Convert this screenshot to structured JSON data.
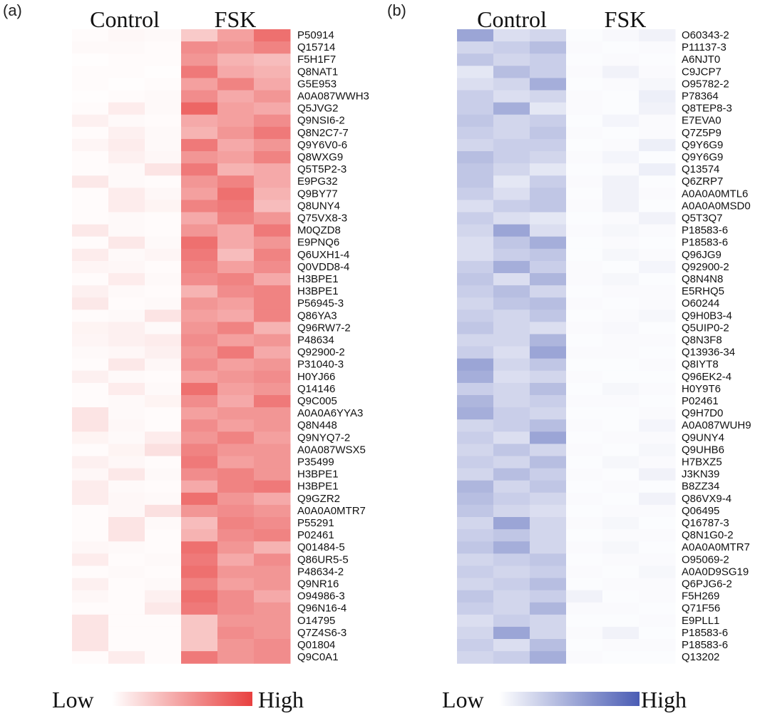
{
  "chart_data": [
    {
      "type": "heatmap",
      "panel": "(a)",
      "groups": [
        "Control",
        "FSK"
      ],
      "columns": 6,
      "color_low": "#ffffff",
      "color_high": "#e8403f",
      "legend": {
        "low": "Low",
        "high": "High"
      },
      "rows": [
        "P50914",
        "Q15714",
        "F5H1F7",
        "Q8NAT1",
        "G5E953",
        "A0A087WWH3",
        "Q5JVG2",
        "Q9NSI6-2",
        "Q8N2C7-7",
        "Q9Y6V0-6",
        "Q8WXG9",
        "Q5T5P2-3",
        "E9PG32",
        "Q9BY77",
        "Q8UNY4",
        "Q75VX8-3",
        "M0QZD8",
        "E9PNQ6",
        "Q6UXH1-4",
        "Q0VDD8-4",
        "H3BPE1",
        "H3BPE1",
        "P56945-3",
        "Q86YA3",
        "Q96RW7-2",
        "P48634",
        "Q92900-2",
        "P31040-3",
        "H0YJ66",
        "Q14146",
        "Q9C005",
        "A0A0A6YYA3",
        "Q8N448",
        "Q9NYQ7-2",
        "A0A087WSX5",
        "P35499",
        "H3BPE1",
        "H3BPE1",
        "Q9GZR2",
        "A0A0A0MTR7",
        "P55291",
        "P02461",
        "Q01484-5",
        "Q86UR5-5",
        "P48634-2",
        "Q9NR16",
        "O94986-3",
        "Q96N16-4",
        "O14795",
        "Q7Z4S6-3",
        "Q01804",
        "Q9C0A1"
      ],
      "values": [
        [
          0.02,
          0.04,
          0.03,
          0.28,
          0.5,
          0.75
        ],
        [
          0.03,
          0.03,
          0.02,
          0.6,
          0.55,
          0.65
        ],
        [
          0.01,
          0.02,
          0.02,
          0.55,
          0.4,
          0.35
        ],
        [
          0.02,
          0.02,
          0.01,
          0.7,
          0.45,
          0.4
        ],
        [
          0.02,
          0.01,
          0.02,
          0.5,
          0.65,
          0.45
        ],
        [
          0.01,
          0.02,
          0.03,
          0.6,
          0.45,
          0.55
        ],
        [
          0.02,
          0.1,
          0.03,
          0.8,
          0.5,
          0.45
        ],
        [
          0.08,
          0.03,
          0.02,
          0.45,
          0.5,
          0.6
        ],
        [
          0.02,
          0.08,
          0.03,
          0.4,
          0.55,
          0.7
        ],
        [
          0.05,
          0.1,
          0.03,
          0.7,
          0.45,
          0.55
        ],
        [
          0.02,
          0.08,
          0.04,
          0.55,
          0.5,
          0.65
        ],
        [
          0.02,
          0.03,
          0.14,
          0.7,
          0.4,
          0.45
        ],
        [
          0.12,
          0.03,
          0.02,
          0.55,
          0.65,
          0.45
        ],
        [
          0.02,
          0.1,
          0.04,
          0.5,
          0.75,
          0.4
        ],
        [
          0.02,
          0.1,
          0.06,
          0.65,
          0.7,
          0.35
        ],
        [
          0.02,
          0.03,
          0.02,
          0.45,
          0.65,
          0.55
        ],
        [
          0.12,
          0.03,
          0.02,
          0.55,
          0.45,
          0.7
        ],
        [
          0.02,
          0.12,
          0.03,
          0.75,
          0.45,
          0.55
        ],
        [
          0.1,
          0.03,
          0.05,
          0.7,
          0.35,
          0.65
        ],
        [
          0.05,
          0.04,
          0.02,
          0.65,
          0.5,
          0.6
        ],
        [
          0.02,
          0.1,
          0.03,
          0.6,
          0.65,
          0.45
        ],
        [
          0.08,
          0.03,
          0.02,
          0.4,
          0.6,
          0.65
        ],
        [
          0.12,
          0.02,
          0.03,
          0.55,
          0.5,
          0.65
        ],
        [
          0.02,
          0.03,
          0.14,
          0.5,
          0.45,
          0.65
        ],
        [
          0.06,
          0.08,
          0.03,
          0.55,
          0.65,
          0.4
        ],
        [
          0.05,
          0.08,
          0.1,
          0.6,
          0.5,
          0.55
        ],
        [
          0.03,
          0.04,
          0.08,
          0.55,
          0.7,
          0.45
        ],
        [
          0.02,
          0.12,
          0.04,
          0.6,
          0.5,
          0.55
        ],
        [
          0.08,
          0.03,
          0.02,
          0.5,
          0.55,
          0.6
        ],
        [
          0.02,
          0.1,
          0.03,
          0.75,
          0.5,
          0.55
        ],
        [
          0.02,
          0.03,
          0.06,
          0.6,
          0.45,
          0.7
        ],
        [
          0.14,
          0.03,
          0.02,
          0.5,
          0.55,
          0.55
        ],
        [
          0.14,
          0.04,
          0.02,
          0.6,
          0.5,
          0.55
        ],
        [
          0.06,
          0.03,
          0.1,
          0.55,
          0.65,
          0.5
        ],
        [
          0.02,
          0.06,
          0.16,
          0.65,
          0.55,
          0.55
        ],
        [
          0.08,
          0.04,
          0.02,
          0.7,
          0.5,
          0.55
        ],
        [
          0.04,
          0.12,
          0.03,
          0.6,
          0.65,
          0.55
        ],
        [
          0.1,
          0.03,
          0.02,
          0.45,
          0.65,
          0.7
        ],
        [
          0.1,
          0.04,
          0.03,
          0.75,
          0.55,
          0.45
        ],
        [
          0.02,
          0.04,
          0.16,
          0.55,
          0.6,
          0.55
        ],
        [
          0.02,
          0.14,
          0.03,
          0.35,
          0.65,
          0.6
        ],
        [
          0.02,
          0.14,
          0.02,
          0.4,
          0.6,
          0.65
        ],
        [
          0.04,
          0.03,
          0.02,
          0.75,
          0.55,
          0.4
        ],
        [
          0.1,
          0.02,
          0.03,
          0.7,
          0.45,
          0.6
        ],
        [
          0.02,
          0.03,
          0.02,
          0.75,
          0.55,
          0.55
        ],
        [
          0.08,
          0.02,
          0.03,
          0.65,
          0.5,
          0.55
        ],
        [
          0.04,
          0.02,
          0.08,
          0.75,
          0.6,
          0.45
        ],
        [
          0.02,
          0.02,
          0.12,
          0.7,
          0.6,
          0.55
        ],
        [
          0.14,
          0.02,
          0.02,
          0.3,
          0.55,
          0.55
        ],
        [
          0.14,
          0.02,
          0.02,
          0.3,
          0.6,
          0.55
        ],
        [
          0.14,
          0.02,
          0.02,
          0.3,
          0.55,
          0.6
        ],
        [
          0.02,
          0.1,
          0.02,
          0.7,
          0.55,
          0.6
        ]
      ]
    },
    {
      "type": "heatmap",
      "panel": "(b)",
      "groups": [
        "Control",
        "FSK"
      ],
      "columns": 6,
      "color_low": "#ffffff",
      "color_high": "#4a5cb4",
      "legend": {
        "low": "Low",
        "high": "High"
      },
      "rows": [
        "O60343-2",
        "P11137-3",
        "A6NJT0",
        "C9JCP7",
        "O95782-2",
        "P78364",
        "Q8TEP8-3",
        "E7EVA0",
        "Q7Z5P9",
        "Q9Y6G9",
        "Q9Y6G9",
        "Q13574",
        "Q6ZRP7",
        "A0A0A0MTL6",
        "A0A0A0MSD0",
        "Q5T3Q7",
        "P18583-6",
        "P18583-6",
        "Q96JG9",
        "Q92900-2",
        "Q8N4N8",
        "E5RHQ5",
        "O60244",
        "Q9H0B3-4",
        "Q5UIP0-2",
        "Q8N3F8",
        "Q13936-34",
        "Q8IYT8",
        "Q96EK2-4",
        "H0Y9T6",
        "P02461",
        "Q9H7D0",
        "A0A087WUH9",
        "Q9UNY4",
        "Q9UHB6",
        "H7BXZ5",
        "J3KN39",
        "B8ZZ34",
        "Q86VX9-4",
        "Q06495",
        "Q16787-3",
        "Q8N1G0-2",
        "A0A0A0MTR7",
        "O95069-2",
        "A0A0D9SG19",
        "Q6PJG6-2",
        "F5H269",
        "Q71F56",
        "E9PLL1",
        "P18583-6",
        "P18583-6",
        "Q13202"
      ],
      "values": [
        [
          0.55,
          0.2,
          0.25,
          0.02,
          0.04,
          0.08
        ],
        [
          0.25,
          0.3,
          0.4,
          0.03,
          0.02,
          0.03
        ],
        [
          0.35,
          0.25,
          0.3,
          0.02,
          0.03,
          0.02
        ],
        [
          0.15,
          0.4,
          0.3,
          0.03,
          0.08,
          0.03
        ],
        [
          0.2,
          0.25,
          0.5,
          0.02,
          0.03,
          0.05
        ],
        [
          0.3,
          0.2,
          0.25,
          0.03,
          0.02,
          0.1
        ],
        [
          0.3,
          0.5,
          0.15,
          0.03,
          0.02,
          0.08
        ],
        [
          0.35,
          0.25,
          0.3,
          0.02,
          0.06,
          0.03
        ],
        [
          0.3,
          0.25,
          0.35,
          0.03,
          0.02,
          0.03
        ],
        [
          0.25,
          0.3,
          0.3,
          0.02,
          0.03,
          0.1
        ],
        [
          0.4,
          0.3,
          0.25,
          0.03,
          0.06,
          0.02
        ],
        [
          0.35,
          0.25,
          0.15,
          0.02,
          0.03,
          0.1
        ],
        [
          0.35,
          0.15,
          0.3,
          0.03,
          0.08,
          0.02
        ],
        [
          0.3,
          0.2,
          0.35,
          0.02,
          0.08,
          0.03
        ],
        [
          0.2,
          0.3,
          0.35,
          0.03,
          0.08,
          0.02
        ],
        [
          0.3,
          0.2,
          0.15,
          0.02,
          0.03,
          0.08
        ],
        [
          0.25,
          0.55,
          0.2,
          0.03,
          0.05,
          0.03
        ],
        [
          0.2,
          0.35,
          0.5,
          0.02,
          0.03,
          0.02
        ],
        [
          0.2,
          0.3,
          0.35,
          0.02,
          0.05,
          0.03
        ],
        [
          0.3,
          0.5,
          0.3,
          0.03,
          0.02,
          0.06
        ],
        [
          0.35,
          0.2,
          0.45,
          0.03,
          0.05,
          0.02
        ],
        [
          0.3,
          0.4,
          0.25,
          0.02,
          0.03,
          0.03
        ],
        [
          0.25,
          0.35,
          0.4,
          0.03,
          0.02,
          0.03
        ],
        [
          0.3,
          0.25,
          0.35,
          0.02,
          0.03,
          0.05
        ],
        [
          0.35,
          0.25,
          0.2,
          0.03,
          0.04,
          0.02
        ],
        [
          0.25,
          0.25,
          0.45,
          0.02,
          0.03,
          0.03
        ],
        [
          0.3,
          0.2,
          0.55,
          0.03,
          0.03,
          0.02
        ],
        [
          0.55,
          0.25,
          0.35,
          0.02,
          0.02,
          0.03
        ],
        [
          0.5,
          0.2,
          0.25,
          0.03,
          0.02,
          0.02
        ],
        [
          0.3,
          0.25,
          0.4,
          0.02,
          0.05,
          0.03
        ],
        [
          0.45,
          0.25,
          0.3,
          0.03,
          0.03,
          0.02
        ],
        [
          0.5,
          0.3,
          0.25,
          0.02,
          0.02,
          0.03
        ],
        [
          0.25,
          0.3,
          0.4,
          0.03,
          0.02,
          0.06
        ],
        [
          0.3,
          0.2,
          0.55,
          0.02,
          0.03,
          0.03
        ],
        [
          0.25,
          0.35,
          0.25,
          0.03,
          0.02,
          0.05
        ],
        [
          0.3,
          0.25,
          0.4,
          0.02,
          0.05,
          0.03
        ],
        [
          0.25,
          0.4,
          0.3,
          0.03,
          0.02,
          0.08
        ],
        [
          0.45,
          0.25,
          0.35,
          0.02,
          0.03,
          0.02
        ],
        [
          0.4,
          0.3,
          0.25,
          0.03,
          0.02,
          0.08
        ],
        [
          0.35,
          0.25,
          0.2,
          0.02,
          0.03,
          0.03
        ],
        [
          0.25,
          0.55,
          0.25,
          0.03,
          0.05,
          0.02
        ],
        [
          0.3,
          0.35,
          0.25,
          0.02,
          0.03,
          0.03
        ],
        [
          0.35,
          0.5,
          0.25,
          0.03,
          0.05,
          0.02
        ],
        [
          0.25,
          0.3,
          0.35,
          0.02,
          0.03,
          0.03
        ],
        [
          0.3,
          0.25,
          0.3,
          0.03,
          0.02,
          0.05
        ],
        [
          0.25,
          0.3,
          0.4,
          0.02,
          0.03,
          0.03
        ],
        [
          0.35,
          0.25,
          0.3,
          0.08,
          0.02,
          0.03
        ],
        [
          0.3,
          0.25,
          0.45,
          0.03,
          0.03,
          0.02
        ],
        [
          0.2,
          0.3,
          0.25,
          0.02,
          0.02,
          0.03
        ],
        [
          0.25,
          0.55,
          0.25,
          0.03,
          0.08,
          0.02
        ],
        [
          0.3,
          0.2,
          0.4,
          0.02,
          0.03,
          0.03
        ],
        [
          0.25,
          0.3,
          0.5,
          0.03,
          0.02,
          0.02
        ]
      ]
    }
  ]
}
